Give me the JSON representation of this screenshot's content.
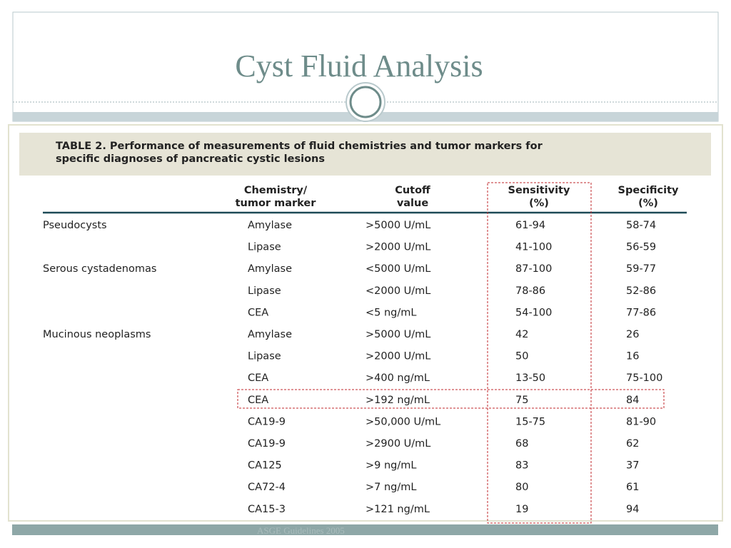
{
  "slide": {
    "title": "Cyst Fluid Analysis",
    "table": {
      "caption": [
        "TABLE 2. Performance of measurements of fluid chemistries and tumor markers for",
        "specific diagnoses of pancreatic cystic lesions"
      ],
      "headers": [
        [
          "Chemistry/",
          "tumor marker"
        ],
        [
          "Cutoff",
          "value"
        ],
        [
          "Sensitivity",
          "(%)"
        ],
        [
          "Specificity",
          "(%)"
        ]
      ],
      "rows": [
        [
          "Pseudocysts",
          "Amylase",
          ">5000 U/mL",
          "61-94",
          "58-74"
        ],
        [
          null,
          "Lipase",
          ">2000 U/mL",
          "41-100",
          "56-59"
        ],
        [
          "Serous cystadenomas",
          "Amylase",
          "<5000 U/mL",
          "87-100",
          "59-77"
        ],
        [
          null,
          "Lipase",
          "<2000 U/mL",
          "78-86",
          "52-86"
        ],
        [
          null,
          "CEA",
          "<5 ng/mL",
          "54-100",
          "77-86"
        ],
        [
          "Mucinous neoplasms",
          "Amylase",
          ">5000 U/mL",
          "42",
          "26"
        ],
        [
          null,
          "Lipase",
          ">2000 U/mL",
          "50",
          "16"
        ],
        [
          null,
          "CEA",
          ">400 ng/mL",
          "13-50",
          "75-100"
        ],
        [
          null,
          "CEA",
          ">192 ng/mL",
          "75",
          "84"
        ],
        [
          null,
          "CA19-9",
          ">50,000 U/mL",
          "15-75",
          "81-90"
        ],
        [
          null,
          "CA19-9",
          ">2900 U/mL",
          "68",
          "62"
        ],
        [
          null,
          "CA125",
          ">9 ng/mL",
          "83",
          "37"
        ],
        [
          null,
          "CA72-4",
          ">7 ng/mL",
          "80",
          "61"
        ],
        [
          null,
          "CA15-3",
          ">121 ng/mL",
          "19",
          "94"
        ]
      ]
    },
    "footer": "ASGE Guidelines 2005"
  }
}
